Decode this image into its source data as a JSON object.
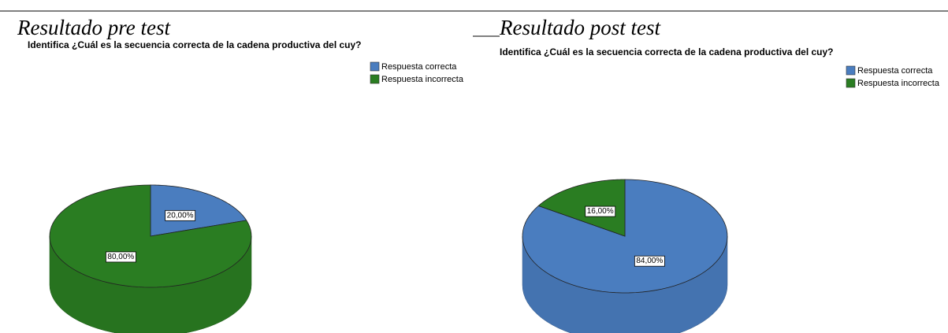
{
  "chart_data": [
    {
      "type": "pie",
      "heading": "Resultado pre test",
      "title": "Identifica ¿Cuál es la secuencia correcta de la cadena productiva del cuy?",
      "categories": [
        "Respuesta correcta",
        "Respuesta incorrecta"
      ],
      "values": [
        20,
        80
      ],
      "value_labels": [
        "20,00%",
        "80,00%"
      ],
      "colors": [
        "#4a7dbf",
        "#2a7d22"
      ]
    },
    {
      "type": "pie",
      "heading": "Resultado post test",
      "title": "Identifica ¿Cuál es la secuencia correcta de la cadena productiva del cuy?",
      "categories": [
        "Respuesta correcta",
        "Respuesta incorrecta"
      ],
      "values": [
        84,
        16
      ],
      "value_labels": [
        "84,00%",
        "16,00%"
      ],
      "colors": [
        "#4a7dbf",
        "#2a7d22"
      ]
    }
  ]
}
